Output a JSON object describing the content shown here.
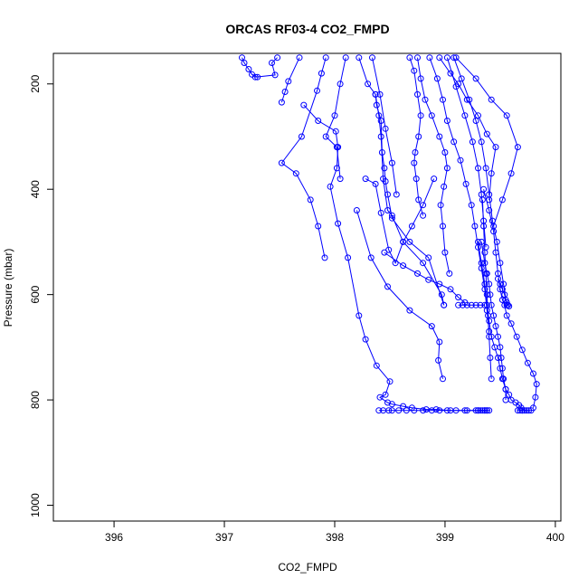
{
  "chart_data": {
    "type": "scatter",
    "title": "ORCAS RF03-4 CO2_FMPD",
    "xlabel": "CO2_FMPD",
    "ylabel": "Pressure (mbar)",
    "xlim": [
      395.45,
      400.05
    ],
    "ylim": [
      1030,
      142
    ],
    "y_reversed": true,
    "x_ticks": [
      396,
      397,
      398,
      399,
      400
    ],
    "y_ticks": [
      200,
      400,
      600,
      800,
      1000
    ],
    "grid": false,
    "legend": "none",
    "color": "#0000ff",
    "marker": "open-circle",
    "series": [
      {
        "x": [
          397.16,
          397.18,
          397.22,
          397.25,
          397.3
        ],
        "y": [
          150,
          160,
          172,
          182,
          187
        ]
      },
      {
        "x": [
          397.48,
          397.43,
          397.46,
          397.28
        ],
        "y": [
          150,
          160,
          183,
          187
        ]
      },
      {
        "x": [
          397.68,
          397.58,
          397.55,
          397.52
        ],
        "y": [
          150,
          195,
          215,
          235
        ]
      },
      {
        "x": [
          397.92,
          397.88,
          397.84,
          397.7,
          397.52,
          397.65,
          397.78,
          397.85,
          397.91
        ],
        "y": [
          150,
          180,
          213,
          300,
          350,
          370,
          420,
          470,
          530
        ]
      },
      {
        "x": [
          398.1,
          398.05,
          398.0,
          397.92,
          398.02,
          398.05
        ],
        "y": [
          150,
          200,
          260,
          300,
          320,
          380
        ]
      },
      {
        "x": [
          397.72,
          397.85,
          398.01,
          398.03,
          398.02,
          397.96,
          398.03,
          398.12,
          398.22,
          398.28,
          398.38,
          398.5,
          398.46,
          398.41,
          398.48,
          398.52,
          398.62,
          398.7,
          398.83,
          398.92,
          399.05,
          399.18,
          399.28,
          399.36
        ],
        "y": [
          240,
          270,
          290,
          320,
          360,
          395,
          465,
          530,
          640,
          685,
          735,
          765,
          790,
          795,
          805,
          808,
          812,
          815,
          818,
          818,
          820,
          820,
          820,
          820
        ]
      },
      {
        "x": [
          398.4,
          398.44,
          398.49,
          398.52,
          398.58,
          398.65,
          398.72,
          398.8,
          398.88,
          398.95,
          399.02,
          399.1,
          399.2,
          399.3,
          399.38
        ],
        "y": [
          820,
          820,
          820,
          820,
          820,
          820,
          820,
          820,
          820,
          820,
          820,
          820,
          820,
          820,
          820
        ]
      },
      {
        "x": [
          398.22,
          398.3,
          398.37,
          398.4,
          398.42,
          398.44,
          398.48,
          398.52,
          398.62,
          398.8,
          398.97,
          398.99
        ],
        "y": [
          150,
          200,
          220,
          260,
          300,
          380,
          440,
          450,
          500,
          540,
          600,
          620
        ]
      },
      {
        "x": [
          398.37,
          398.38,
          398.42,
          398.43,
          398.45,
          398.46,
          398.48,
          398.52,
          398.68,
          398.85,
          398.99
        ],
        "y": [
          220,
          240,
          270,
          330,
          360,
          385,
          410,
          455,
          500,
          530,
          620
        ]
      },
      {
        "x": [
          398.34,
          398.41,
          398.46,
          398.52,
          398.56
        ],
        "y": [
          150,
          220,
          285,
          350,
          410
        ]
      },
      {
        "x": [
          398.28,
          398.37,
          398.42,
          398.49,
          398.55,
          398.62,
          398.7,
          398.8,
          398.9
        ],
        "y": [
          380,
          390,
          445,
          515,
          540,
          500,
          470,
          430,
          380
        ]
      },
      {
        "x": [
          398.2,
          398.33,
          398.48,
          398.68,
          398.88,
          398.95,
          398.94,
          398.98
        ],
        "y": [
          440,
          530,
          585,
          630,
          660,
          690,
          725,
          760
        ]
      },
      {
        "x": [
          398.45,
          398.62,
          398.75,
          398.85,
          398.95,
          399.05,
          399.12,
          399.18
        ],
        "y": [
          520,
          545,
          560,
          572,
          580,
          590,
          605,
          615
        ]
      },
      {
        "x": [
          399.12,
          399.16,
          399.2,
          399.24,
          399.28,
          399.32,
          399.36
        ],
        "y": [
          620,
          620,
          620,
          620,
          620,
          620,
          620
        ]
      },
      {
        "x": [
          398.68,
          398.72,
          398.75,
          398.78,
          398.76,
          398.73,
          398.72,
          398.74,
          398.76,
          398.8
        ],
        "y": [
          150,
          175,
          220,
          260,
          300,
          330,
          350,
          380,
          420,
          450
        ]
      },
      {
        "x": [
          398.75,
          398.78,
          398.82,
          398.88,
          398.95,
          399.0,
          399.02,
          398.99,
          398.96,
          398.98,
          399.0,
          399.04
        ],
        "y": [
          150,
          190,
          230,
          260,
          300,
          330,
          360,
          395,
          430,
          470,
          520,
          560
        ]
      },
      {
        "x": [
          398.86,
          398.93,
          398.98,
          399.02,
          399.08,
          399.14,
          399.19,
          399.24,
          399.27,
          399.3,
          399.33,
          399.36,
          399.38,
          399.4
        ],
        "y": [
          150,
          190,
          230,
          270,
          310,
          345,
          390,
          430,
          470,
          510,
          550,
          590,
          630,
          670
        ]
      },
      {
        "x": [
          399.02,
          399.1,
          399.18,
          399.25,
          399.3,
          399.33,
          399.35,
          399.37
        ],
        "y": [
          150,
          205,
          260,
          310,
          360,
          410,
          460,
          510
        ]
      },
      {
        "x": [
          399.08,
          399.15,
          399.22,
          399.28,
          399.33,
          399.37,
          399.4,
          399.43,
          399.47,
          399.5,
          399.53,
          399.56
        ],
        "y": [
          150,
          190,
          230,
          270,
          310,
          360,
          410,
          460,
          500,
          540,
          580,
          620
        ]
      },
      {
        "x": [
          398.95,
          399.05,
          399.12,
          399.2,
          399.3,
          399.38,
          399.46,
          399.42,
          399.4
        ],
        "y": [
          150,
          180,
          200,
          230,
          260,
          295,
          320,
          370,
          420
        ]
      },
      {
        "x": [
          399.1,
          399.28,
          399.42,
          399.56,
          399.66,
          399.6,
          399.52,
          399.44
        ],
        "y": [
          150,
          190,
          230,
          260,
          320,
          370,
          420,
          470
        ]
      },
      {
        "x": [
          399.35,
          399.4,
          399.44,
          399.46,
          399.48,
          399.5,
          399.52,
          399.54,
          399.56,
          399.6,
          399.65,
          399.7,
          399.75,
          399.8,
          399.83,
          399.82,
          399.8
        ],
        "y": [
          400,
          440,
          480,
          520,
          560,
          590,
          610,
          620,
          640,
          655,
          680,
          705,
          730,
          750,
          770,
          795,
          815
        ]
      },
      {
        "x": [
          399.3,
          399.33,
          399.36,
          399.38,
          399.4,
          399.42,
          399.45,
          399.48,
          399.5,
          399.52,
          399.55,
          399.58,
          399.6,
          399.64,
          399.67,
          399.69,
          399.7
        ],
        "y": [
          500,
          540,
          580,
          620,
          650,
          680,
          700,
          720,
          740,
          760,
          780,
          790,
          800,
          805,
          810,
          815,
          820
        ]
      },
      {
        "x": [
          399.33,
          399.36,
          399.38,
          399.4,
          399.41,
          399.42,
          399.44,
          399.46,
          399.48,
          399.5,
          399.51,
          399.52,
          399.53,
          399.55,
          399.55
        ],
        "y": [
          500,
          540,
          560,
          580,
          600,
          620,
          640,
          660,
          680,
          700,
          720,
          740,
          760,
          780,
          800
        ]
      },
      {
        "x": [
          399.34,
          399.35,
          399.36,
          399.37,
          399.38,
          399.39,
          399.4,
          399.41,
          399.42
        ],
        "y": [
          420,
          470,
          520,
          560,
          600,
          640,
          680,
          720,
          760
        ]
      },
      {
        "x": [
          399.48,
          399.5,
          399.52,
          399.54,
          399.55,
          399.56,
          399.57,
          399.58
        ],
        "y": [
          570,
          580,
          590,
          600,
          610,
          615,
          620,
          622
        ]
      },
      {
        "x": [
          399.66,
          399.68,
          399.7,
          399.72,
          399.74,
          399.76,
          399.78
        ],
        "y": [
          820,
          820,
          820,
          820,
          820,
          820,
          820
        ]
      },
      {
        "x": [
          399.3,
          399.32,
          399.34,
          399.36,
          399.38,
          399.4
        ],
        "y": [
          820,
          820,
          820,
          820,
          820,
          820
        ]
      }
    ]
  }
}
